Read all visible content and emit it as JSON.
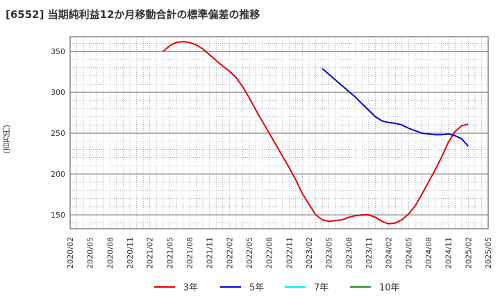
{
  "chart_data": {
    "type": "line",
    "title": "[6552]  当期純利益12か月移動合計の標準偏差の推移",
    "ylabel": "(百万円)",
    "xlabel": "",
    "ylim": [
      133,
      368
    ],
    "yticks": [
      150,
      200,
      250,
      300,
      350
    ],
    "x_ticks": [
      "2020/02",
      "2020/05",
      "2020/08",
      "2020/11",
      "2021/02",
      "2021/05",
      "2021/08",
      "2021/11",
      "2022/02",
      "2022/05",
      "2022/08",
      "2022/11",
      "2023/02",
      "2023/05",
      "2023/08",
      "2023/11",
      "2024/02",
      "2024/05",
      "2024/08",
      "2024/11",
      "2025/02",
      "2025/05"
    ],
    "grid": true,
    "legend_position": "bottom",
    "series": [
      {
        "name": "3年",
        "color": "#dd0000",
        "points": [
          [
            "2021/04",
            350
          ],
          [
            "2021/05",
            357
          ],
          [
            "2021/06",
            361
          ],
          [
            "2021/07",
            362
          ],
          [
            "2021/08",
            361
          ],
          [
            "2021/09",
            358
          ],
          [
            "2021/10",
            353
          ],
          [
            "2021/11",
            346
          ],
          [
            "2021/12",
            339
          ],
          [
            "2022/01",
            332
          ],
          [
            "2022/02",
            326
          ],
          [
            "2022/03",
            318
          ],
          [
            "2022/04",
            307
          ],
          [
            "2022/05",
            293
          ],
          [
            "2022/06",
            278
          ],
          [
            "2022/07",
            264
          ],
          [
            "2022/08",
            250
          ],
          [
            "2022/09",
            236
          ],
          [
            "2022/10",
            222
          ],
          [
            "2022/11",
            208
          ],
          [
            "2022/12",
            193
          ],
          [
            "2023/01",
            176
          ],
          [
            "2023/02",
            163
          ],
          [
            "2023/03",
            150
          ],
          [
            "2023/04",
            144
          ],
          [
            "2023/05",
            142
          ],
          [
            "2023/06",
            143
          ],
          [
            "2023/07",
            144
          ],
          [
            "2023/08",
            147
          ],
          [
            "2023/09",
            149
          ],
          [
            "2023/10",
            150
          ],
          [
            "2023/11",
            150
          ],
          [
            "2023/12",
            147
          ],
          [
            "2024/01",
            142
          ],
          [
            "2024/02",
            139
          ],
          [
            "2024/03",
            140
          ],
          [
            "2024/04",
            144
          ],
          [
            "2024/05",
            151
          ],
          [
            "2024/06",
            161
          ],
          [
            "2024/07",
            175
          ],
          [
            "2024/08",
            190
          ],
          [
            "2024/09",
            205
          ],
          [
            "2024/10",
            221
          ],
          [
            "2024/11",
            239
          ],
          [
            "2024/12",
            252
          ],
          [
            "2025/01",
            259
          ],
          [
            "2025/02",
            261
          ]
        ]
      },
      {
        "name": "5年",
        "color": "#0000cc",
        "points": [
          [
            "2023/04",
            329
          ],
          [
            "2023/05",
            322
          ],
          [
            "2023/06",
            315
          ],
          [
            "2023/07",
            308
          ],
          [
            "2023/08",
            301
          ],
          [
            "2023/09",
            294
          ],
          [
            "2023/10",
            286
          ],
          [
            "2023/11",
            278
          ],
          [
            "2023/12",
            270
          ],
          [
            "2024/01",
            265
          ],
          [
            "2024/02",
            263
          ],
          [
            "2024/03",
            262
          ],
          [
            "2024/04",
            260
          ],
          [
            "2024/05",
            256
          ],
          [
            "2024/06",
            253
          ],
          [
            "2024/07",
            250
          ],
          [
            "2024/08",
            249
          ],
          [
            "2024/09",
            248
          ],
          [
            "2024/10",
            248
          ],
          [
            "2024/11",
            249
          ],
          [
            "2024/12",
            247
          ],
          [
            "2025/01",
            243
          ],
          [
            "2025/02",
            234
          ]
        ]
      },
      {
        "name": "7年",
        "color": "#00e5ff",
        "points": []
      },
      {
        "name": "10年",
        "color": "#228822",
        "points": []
      }
    ]
  }
}
